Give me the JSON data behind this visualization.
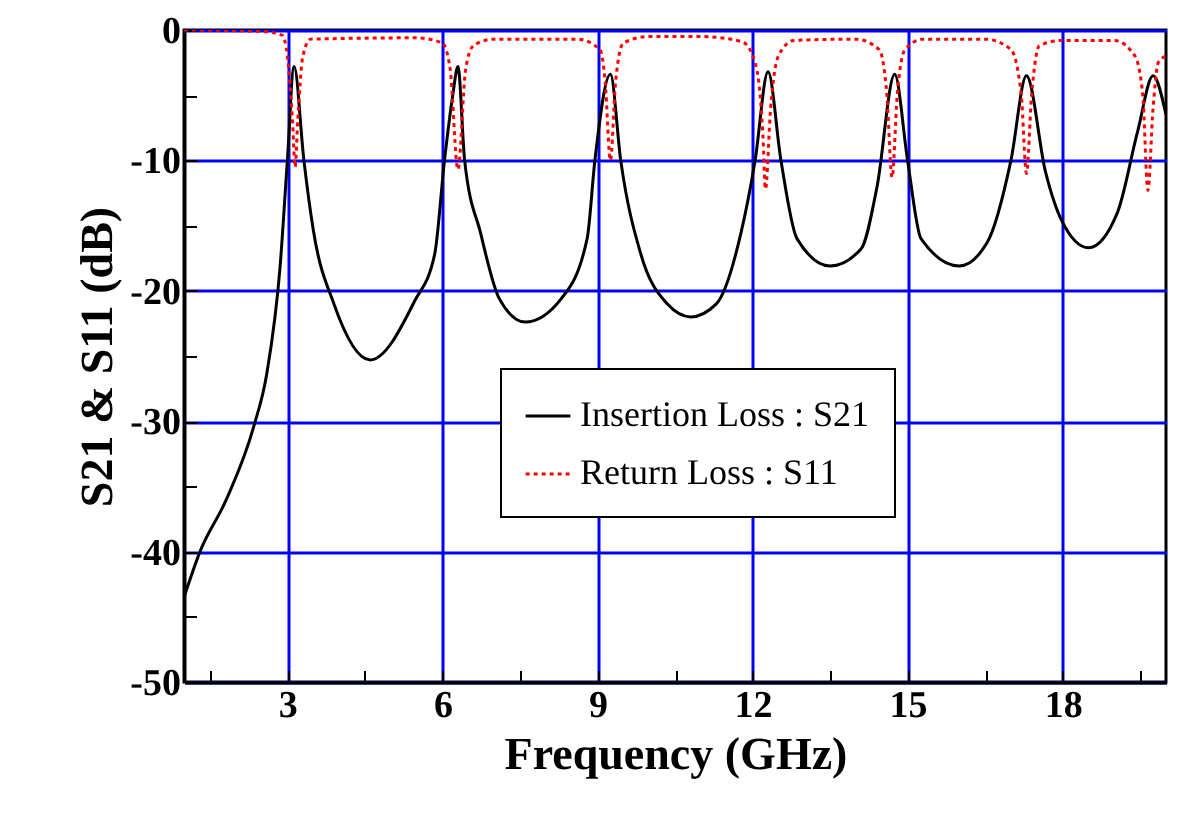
{
  "chart_data": {
    "type": "line",
    "xlabel": "Frequency (GHz)",
    "ylabel": "S21  &  S11 (dB)",
    "xlim": [
      1,
      20
    ],
    "ylim": [
      -50,
      0
    ],
    "xticks": [
      {
        "value": 1.5,
        "label": null
      },
      3,
      {
        "value": 4.5,
        "label": null
      },
      6,
      {
        "value": 7.5,
        "label": null
      },
      9,
      {
        "value": 10.5,
        "label": null
      },
      12,
      {
        "value": 13.5,
        "label": null
      },
      15,
      {
        "value": 16.5,
        "label": null
      },
      18,
      {
        "value": 19.5,
        "label": null
      }
    ],
    "yticks": [
      -50,
      {
        "value": -45,
        "label": null
      },
      -40,
      {
        "value": -35,
        "label": null
      },
      -30,
      {
        "value": -25,
        "label": null
      },
      -20,
      {
        "value": -15,
        "label": null
      },
      -10,
      {
        "value": -5,
        "label": null
      },
      0
    ],
    "grid": true,
    "legend": "right",
    "series": [
      {
        "name": "Insertion Loss : S21",
        "color": "#000000",
        "line_style": "solid",
        "x": [
          1,
          1.31,
          1.82,
          2.35,
          2.6,
          2.86,
          3.0,
          3.13,
          3.32,
          3.5,
          3.9,
          4.6,
          5.46,
          5.85,
          6.04,
          6.2,
          6.3,
          6.43,
          6.74,
          7.1,
          7.6,
          8.3,
          8.8,
          8.95,
          9.25,
          9.45,
          9.84,
          10.35,
          10.8,
          11.3,
          11.78,
          12.05,
          12.3,
          12.55,
          12.86,
          13.5,
          14.1,
          14.41,
          14.75,
          15.0,
          15.26,
          16.0,
          16.54,
          17.0,
          17.3,
          17.67,
          17.98,
          18.5,
          19.06,
          19.45,
          19.75,
          20
        ],
        "values": [
          -43.5,
          -40,
          -36,
          -30.4,
          -26.4,
          -18.1,
          -10,
          -2.8,
          -10,
          -15.3,
          -21,
          -25.3,
          -20.8,
          -17.2,
          -10,
          -5,
          -2.8,
          -10,
          -15.6,
          -20.6,
          -22.4,
          -20.6,
          -16,
          -10,
          -3.4,
          -10,
          -17.2,
          -21,
          -22,
          -21,
          -15.5,
          -10,
          -3.2,
          -10,
          -16,
          -18.1,
          -16.8,
          -12,
          -3.4,
          -10,
          -16,
          -18.1,
          -16.3,
          -10,
          -3.5,
          -10.9,
          -14.6,
          -16.7,
          -14,
          -7.8,
          -3.5,
          -6.5
        ]
      },
      {
        "name": "Return Loss : S11",
        "color": "#ff0000",
        "line_style": "dotted",
        "x": [
          1,
          2.5,
          2.9,
          3.0,
          3.1,
          3.15,
          3.2,
          3.3,
          3.45,
          5.5,
          6.0,
          6.15,
          6.3,
          6.45,
          6.6,
          7,
          8.6,
          9.05,
          9.15,
          9.25,
          9.35,
          9.5,
          10,
          11,
          11.8,
          12.05,
          12.2,
          12.25,
          12.35,
          12.5,
          12.8,
          14,
          14.45,
          14.6,
          14.7,
          14.8,
          14.95,
          15.3,
          16.5,
          17.0,
          17.2,
          17.3,
          17.4,
          17.55,
          18,
          19,
          19.4,
          19.55,
          19.65,
          19.75,
          19.85,
          20
        ],
        "values": [
          0,
          -0.1,
          -0.4,
          -2,
          -7,
          -10.5,
          -7,
          -2,
          -0.7,
          -0.6,
          -1,
          -3,
          -10.7,
          -3,
          -1.2,
          -0.7,
          -0.7,
          -1.5,
          -4,
          -10,
          -4,
          -1,
          -0.5,
          -0.5,
          -0.9,
          -2.5,
          -8,
          -12.2,
          -6,
          -2,
          -0.8,
          -0.7,
          -1.5,
          -5,
          -11.3,
          -5,
          -1.5,
          -0.7,
          -0.7,
          -1.5,
          -5,
          -11,
          -5,
          -1.2,
          -0.8,
          -0.8,
          -2,
          -5,
          -12.3,
          -6,
          -2.5,
          -2
        ]
      }
    ]
  }
}
